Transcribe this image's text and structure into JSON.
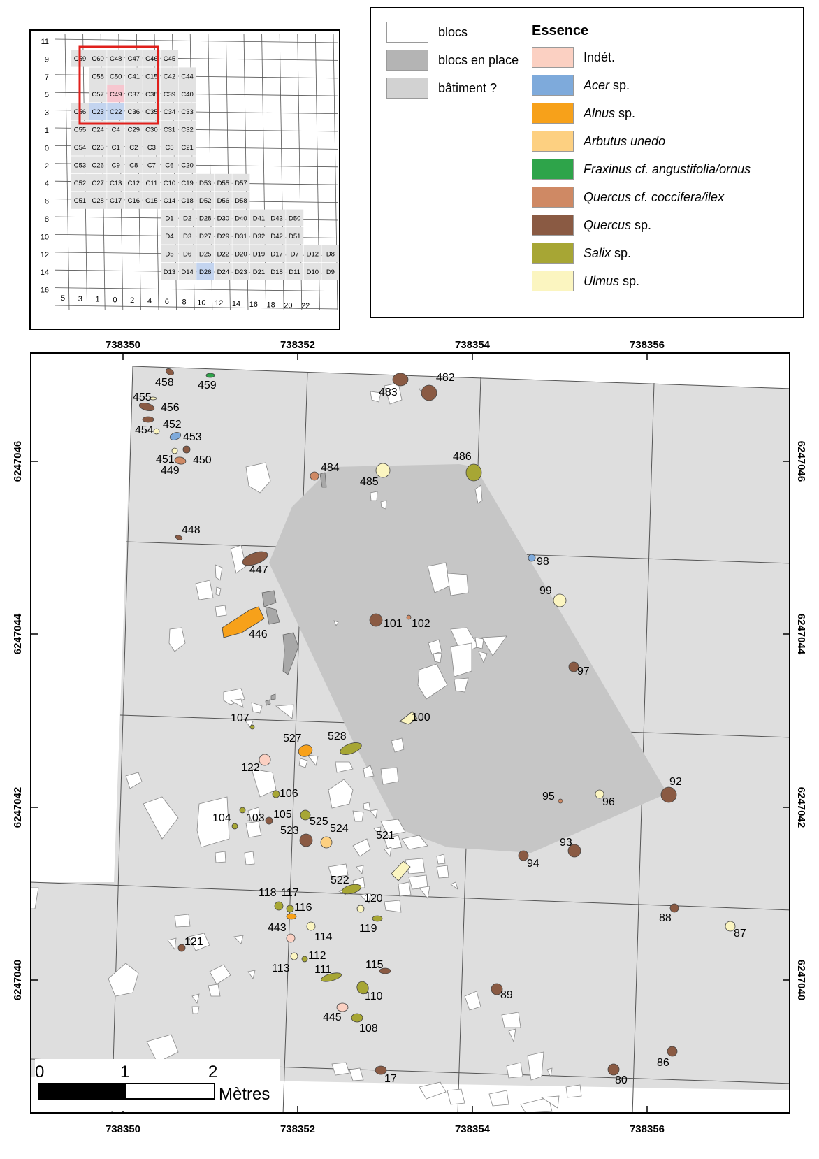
{
  "inset": {
    "y_labels": [
      "11",
      "9",
      "7",
      "5",
      "3",
      "1",
      "0",
      "2",
      "4",
      "6",
      "8",
      "10",
      "12",
      "14",
      "16"
    ],
    "x_labels": [
      "5",
      "3",
      "1",
      "0",
      "2",
      "4",
      "6",
      "8",
      "10",
      "12",
      "14",
      "16",
      "18",
      "20",
      "22"
    ],
    "cells": [
      [
        "C59",
        "C60",
        "C48",
        "C47",
        "C46",
        "C45",
        null,
        null,
        null,
        null,
        null,
        null,
        null,
        null
      ],
      [
        null,
        "C58",
        "C50",
        "C41",
        "C15",
        "C42",
        "C44",
        null,
        null,
        null,
        null,
        null,
        null,
        null
      ],
      [
        null,
        "C57",
        "C49",
        "C37",
        "C38",
        "C39",
        "C40",
        null,
        null,
        null,
        null,
        null,
        null,
        null
      ],
      [
        "C56",
        "C23",
        "C22",
        "C36",
        "C35",
        "C34",
        "C33",
        null,
        null,
        null,
        null,
        null,
        null,
        null
      ],
      [
        "C55",
        "C24",
        "C4",
        "C29",
        "C30",
        "C31",
        "C32",
        null,
        null,
        null,
        null,
        null,
        null,
        null
      ],
      [
        "C54",
        "C25",
        "C1",
        "C2",
        "C3",
        "C5",
        "C21",
        null,
        null,
        null,
        null,
        null,
        null,
        null
      ],
      [
        "C53",
        "C26",
        "C9",
        "C8",
        "C7",
        "C6",
        "C20",
        null,
        null,
        null,
        null,
        null,
        null,
        null
      ],
      [
        "C52",
        "C27",
        "C13",
        "C12",
        "C11",
        "C10",
        "C19",
        "D53",
        "D55",
        "D57",
        null,
        null,
        null,
        null
      ],
      [
        "C51",
        "C28",
        "C17",
        "C16",
        "C15",
        "C14",
        "C18",
        "D52",
        "D56",
        "D58",
        null,
        null,
        null,
        null
      ],
      [
        null,
        null,
        null,
        null,
        null,
        "D1",
        "D2",
        "D28",
        "D30",
        "D40",
        "D41",
        "D43",
        "D50",
        null
      ],
      [
        null,
        null,
        null,
        null,
        null,
        "D4",
        "D3",
        "D27",
        "D29",
        "D31",
        "D32",
        "D42",
        "D51",
        null
      ],
      [
        null,
        null,
        null,
        null,
        null,
        "D5",
        "D6",
        "D25",
        "D22",
        "D20",
        "D19",
        "D17",
        "D7",
        "D12",
        "D8"
      ],
      [
        null,
        null,
        null,
        null,
        null,
        "D13",
        "D14",
        "D26",
        "D24",
        "D23",
        "D21",
        "D18",
        "D11",
        "D10",
        "D9"
      ]
    ],
    "highlight_pink": "C49",
    "highlight_blue": [
      "C23",
      "C22",
      "D26"
    ],
    "frame_color": "#e0201c"
  },
  "legend": {
    "items": [
      {
        "label": "blocs",
        "color": "#ffffff"
      },
      {
        "label": "blocs en place",
        "color": "#b4b4b4"
      },
      {
        "label": "bâtiment ?",
        "color": "#d2d2d2"
      }
    ],
    "essence_title": "Essence",
    "essences": [
      {
        "italic": "",
        "plain": "Indét.",
        "color": "#fbd0c2"
      },
      {
        "italic": "Acer",
        "plain": " sp.",
        "color": "#7eaadb"
      },
      {
        "italic": "Alnus",
        "plain": " sp.",
        "color": "#f7a11a"
      },
      {
        "italic": "Arbutus unedo",
        "plain": "",
        "color": "#fdd081"
      },
      {
        "italic": "Fraxinus cf. angustifolia/ornus",
        "plain": "",
        "color": "#2ea44a"
      },
      {
        "italic": "Quercus cf. coccifera/ilex",
        "plain": "",
        "color": "#cf8964"
      },
      {
        "italic": "Quercus",
        "plain": " sp.",
        "color": "#8a5a43"
      },
      {
        "italic": "Salix",
        "plain": " sp.",
        "color": "#a7a634"
      },
      {
        "italic": "Ulmus",
        "plain": " sp.",
        "color": "#fbf5c0"
      }
    ]
  },
  "map": {
    "x_ticks": [
      "738350",
      "738352",
      "738354",
      "738356"
    ],
    "y_ticks": [
      "6247046",
      "6247044",
      "6247042",
      "6247040"
    ],
    "scale": {
      "labels": [
        "0",
        "1",
        "2"
      ],
      "unit": "Mètres"
    },
    "samples": [
      {
        "id": "458",
        "c": "q"
      },
      {
        "id": "459",
        "c": "f"
      },
      {
        "id": "455",
        "c": "u"
      },
      {
        "id": "456",
        "c": "q"
      },
      {
        "id": "454",
        "c": "u"
      },
      {
        "id": "452",
        "c": "q"
      },
      {
        "id": "453",
        "c": "a"
      },
      {
        "id": "451",
        "c": "u"
      },
      {
        "id": "450",
        "c": "q"
      },
      {
        "id": "449",
        "c": "qc"
      },
      {
        "id": "448",
        "c": "q"
      },
      {
        "id": "447",
        "c": "q"
      },
      {
        "id": "446",
        "c": "al"
      },
      {
        "id": "483",
        "c": "q"
      },
      {
        "id": "482",
        "c": "q"
      },
      {
        "id": "484",
        "c": "qc"
      },
      {
        "id": "485",
        "c": "u"
      },
      {
        "id": "486",
        "c": "s"
      },
      {
        "id": "98",
        "c": "a"
      },
      {
        "id": "99",
        "c": "u"
      },
      {
        "id": "101",
        "c": "q"
      },
      {
        "id": "102",
        "c": "qc"
      },
      {
        "id": "97",
        "c": "q"
      },
      {
        "id": "100",
        "c": "u"
      },
      {
        "id": "107",
        "c": "s"
      },
      {
        "id": "527",
        "c": "al"
      },
      {
        "id": "528",
        "c": "s"
      },
      {
        "id": "122",
        "c": "i"
      },
      {
        "id": "106",
        "c": "s"
      },
      {
        "id": "104",
        "c": "s"
      },
      {
        "id": "103",
        "c": "s"
      },
      {
        "id": "105",
        "c": "q"
      },
      {
        "id": "525",
        "c": "s"
      },
      {
        "id": "523",
        "c": "q"
      },
      {
        "id": "524",
        "c": "ar"
      },
      {
        "id": "521",
        "c": "u"
      },
      {
        "id": "522",
        "c": "s"
      },
      {
        "id": "118",
        "c": "s"
      },
      {
        "id": "117",
        "c": "s"
      },
      {
        "id": "116",
        "c": "al"
      },
      {
        "id": "120",
        "c": "u"
      },
      {
        "id": "119",
        "c": "s"
      },
      {
        "id": "443",
        "c": "i"
      },
      {
        "id": "114",
        "c": "u"
      },
      {
        "id": "121",
        "c": "q"
      },
      {
        "id": "113",
        "c": "u"
      },
      {
        "id": "112",
        "c": "s"
      },
      {
        "id": "111",
        "c": "s"
      },
      {
        "id": "115",
        "c": "q"
      },
      {
        "id": "110",
        "c": "s"
      },
      {
        "id": "445",
        "c": "i"
      },
      {
        "id": "108",
        "c": "s"
      },
      {
        "id": "17",
        "c": "q"
      },
      {
        "id": "89",
        "c": "q"
      },
      {
        "id": "95",
        "c": "qc"
      },
      {
        "id": "96",
        "c": "u"
      },
      {
        "id": "92",
        "c": "q"
      },
      {
        "id": "93",
        "c": "q"
      },
      {
        "id": "94",
        "c": "q"
      },
      {
        "id": "88",
        "c": "q"
      },
      {
        "id": "87",
        "c": "u"
      },
      {
        "id": "86",
        "c": "q"
      },
      {
        "id": "80",
        "c": "q"
      }
    ]
  }
}
